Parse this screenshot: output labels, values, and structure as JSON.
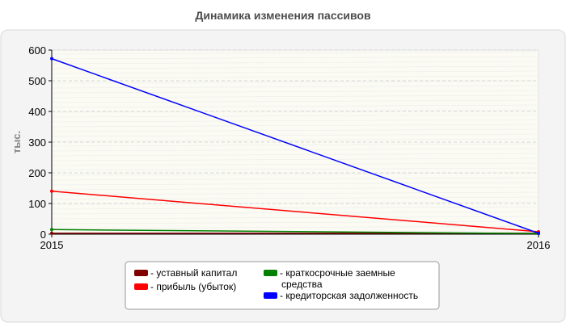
{
  "chart_data": {
    "type": "line",
    "title": "Динамика изменения пассивов",
    "ylabel": "тыс.",
    "xlabel": "",
    "x": [
      "2015",
      "2016"
    ],
    "ylim": [
      0,
      600
    ],
    "yticks": [
      0,
      100,
      200,
      300,
      400,
      500,
      600
    ],
    "grid": true,
    "legend_position": "bottom",
    "series": [
      {
        "name": "- уставный капитал",
        "values": [
          3,
          3
        ],
        "color": "#800000"
      },
      {
        "name": "- прибыль (убыток)",
        "values": [
          140,
          8
        ],
        "color": "#ff0000"
      },
      {
        "name": "- краткосрочные заемные средства",
        "values": [
          15,
          2
        ],
        "color": "#008000"
      },
      {
        "name": "- кредиторская задолженность",
        "values": [
          572,
          3
        ],
        "color": "#0000ff"
      }
    ]
  }
}
